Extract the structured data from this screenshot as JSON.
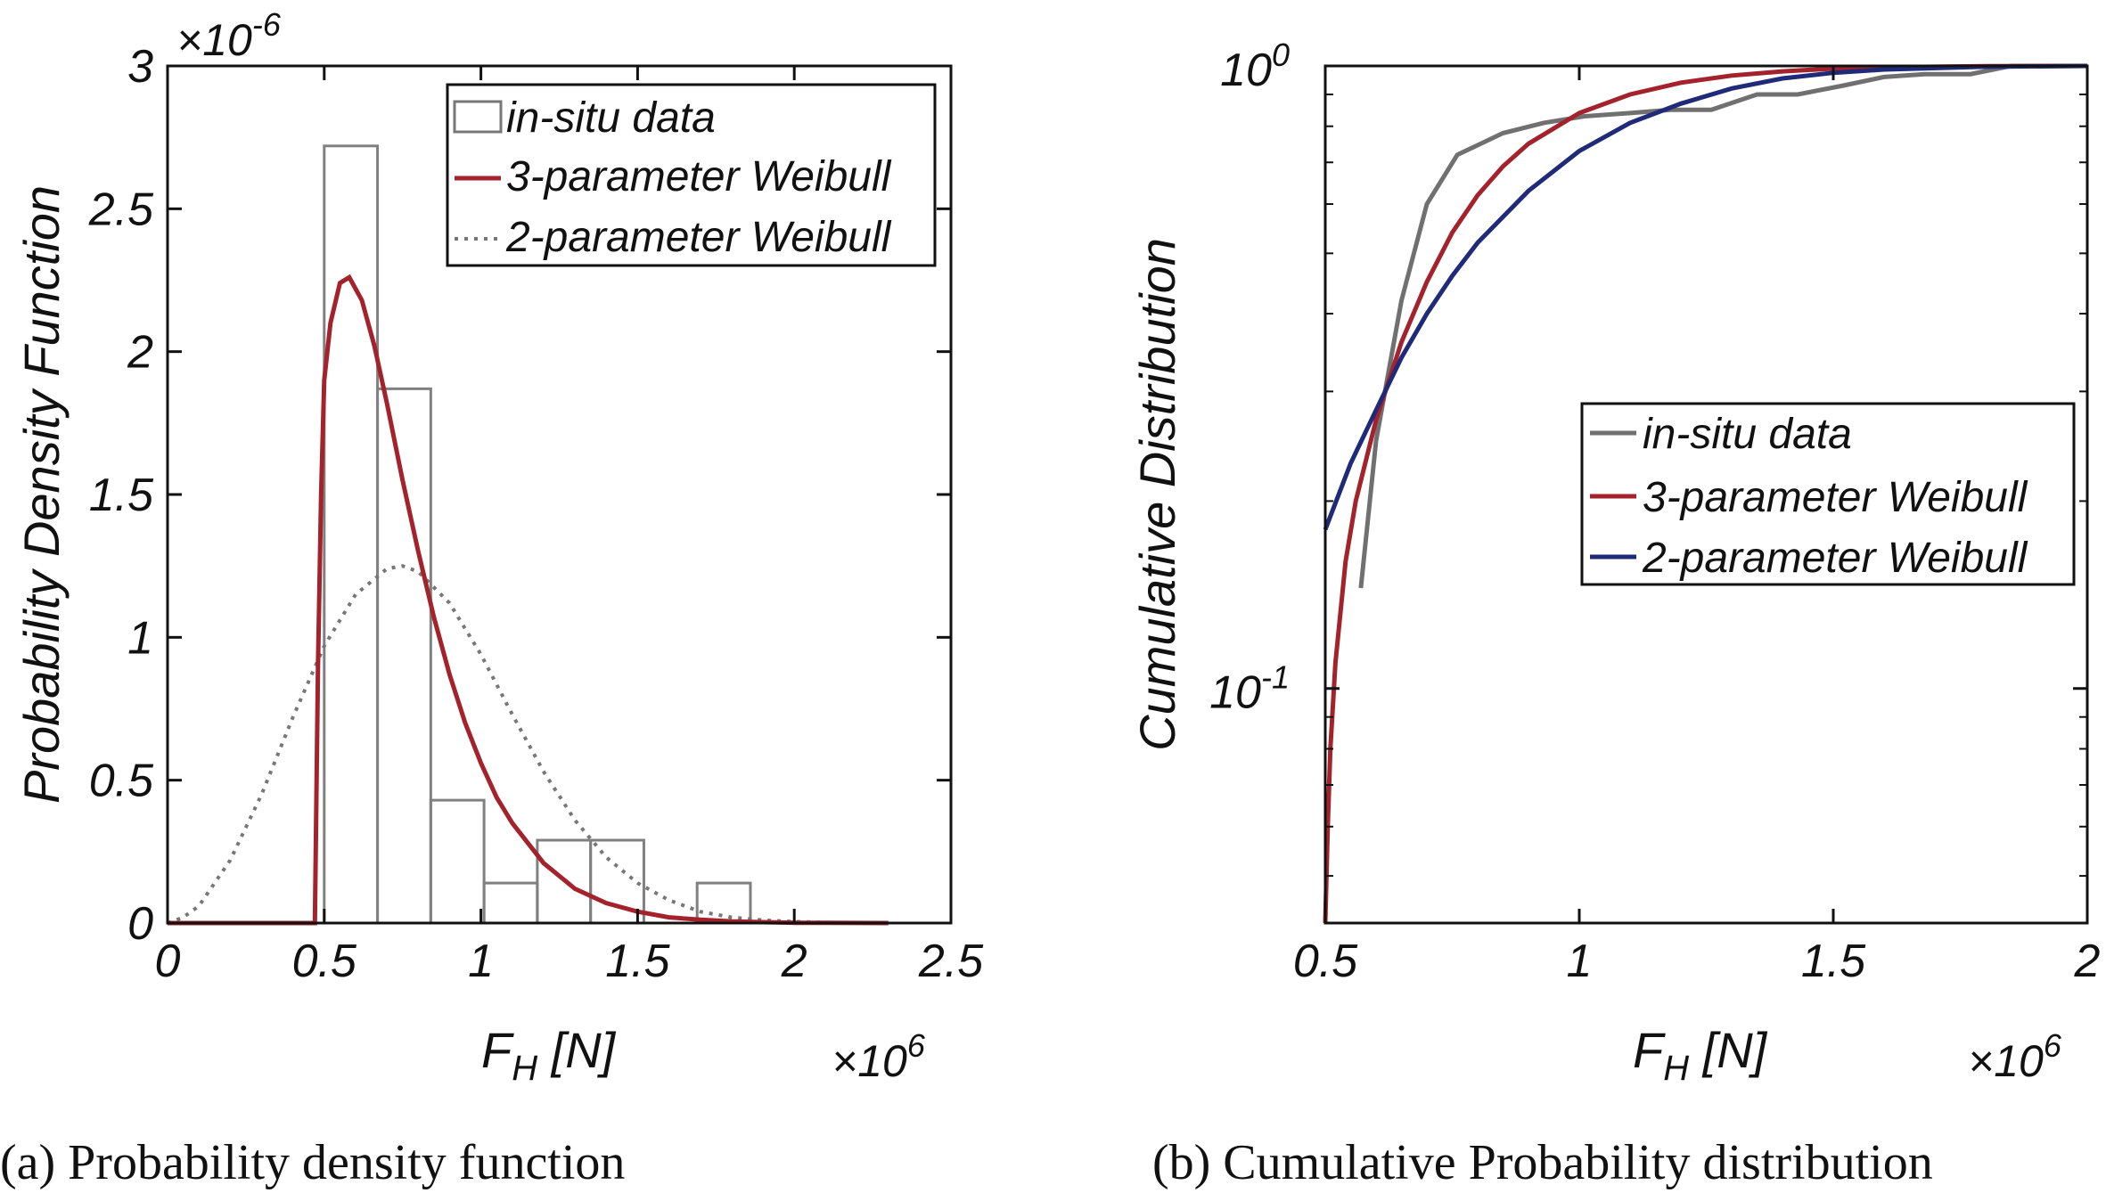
{
  "chart_data": [
    {
      "type": "bar",
      "panel": "a",
      "ylabel": "Probability Density Function",
      "xlabel": "F",
      "xlabel_sub": "H",
      "xlabel_unit": " [N]",
      "y_multiplier_base": "×10",
      "y_multiplier_exp": "-6",
      "x_multiplier_base": "×10",
      "x_multiplier_exp": "6",
      "xlim": [
        0,
        2.5
      ],
      "ylim": [
        0,
        3
      ],
      "x_ticks": [
        "0",
        "0.5",
        "1",
        "1.5",
        "2",
        "2.5"
      ],
      "y_ticks": [
        "0",
        "0.5",
        "1",
        "1.5",
        "2",
        "2.5",
        "3"
      ],
      "histogram": {
        "name": "in-situ data",
        "bins": [
          {
            "x0": 0.5,
            "x1": 0.67,
            "value": 2.72
          },
          {
            "x0": 0.67,
            "x1": 0.84,
            "value": 1.87
          },
          {
            "x0": 0.84,
            "x1": 1.01,
            "value": 0.43
          },
          {
            "x0": 1.01,
            "x1": 1.18,
            "value": 0.14
          },
          {
            "x0": 1.18,
            "x1": 1.35,
            "value": 0.29
          },
          {
            "x0": 1.35,
            "x1": 1.52,
            "value": 0.29
          },
          {
            "x0": 1.52,
            "x1": 1.69,
            "value": 0.0
          },
          {
            "x0": 1.69,
            "x1": 1.86,
            "value": 0.14
          }
        ]
      },
      "series": [
        {
          "name": "3-parameter Weibull",
          "color": "#a3222b",
          "style": "solid",
          "x": [
            0,
            0.47,
            0.48,
            0.49,
            0.5,
            0.52,
            0.55,
            0.58,
            0.62,
            0.66,
            0.7,
            0.75,
            0.8,
            0.85,
            0.9,
            0.95,
            1.0,
            1.05,
            1.1,
            1.2,
            1.3,
            1.4,
            1.5,
            1.6,
            1.7,
            1.8,
            1.9,
            2.0,
            2.1,
            2.2,
            2.3
          ],
          "values": [
            0,
            0,
            0.9,
            1.5,
            1.9,
            2.1,
            2.24,
            2.26,
            2.18,
            2.02,
            1.82,
            1.55,
            1.3,
            1.07,
            0.87,
            0.7,
            0.56,
            0.44,
            0.35,
            0.21,
            0.12,
            0.07,
            0.04,
            0.02,
            0.012,
            0.006,
            0.003,
            0.001,
            0.0005,
            0.0002,
            0.0
          ]
        },
        {
          "name": "2-parameter Weibull",
          "color": "#777777",
          "style": "dotted",
          "x": [
            0,
            0.05,
            0.1,
            0.2,
            0.3,
            0.4,
            0.5,
            0.6,
            0.7,
            0.75,
            0.8,
            0.9,
            1.0,
            1.1,
            1.2,
            1.3,
            1.4,
            1.5,
            1.6,
            1.7,
            1.8,
            1.9,
            2.0,
            2.1,
            2.2,
            2.3
          ],
          "values": [
            0,
            0.02,
            0.06,
            0.22,
            0.45,
            0.72,
            0.97,
            1.15,
            1.24,
            1.25,
            1.23,
            1.12,
            0.94,
            0.73,
            0.53,
            0.36,
            0.23,
            0.14,
            0.08,
            0.04,
            0.02,
            0.01,
            0.005,
            0.002,
            0.001,
            0.0
          ]
        }
      ],
      "legend": [
        "in-situ data",
        "3-parameter Weibull",
        "2-parameter Weibull"
      ],
      "legend_position": "top-right",
      "caption": "(a) Probability density function"
    },
    {
      "type": "line",
      "panel": "b",
      "yscale": "log",
      "ylabel": "Cumulative Distribution",
      "xlabel": "F",
      "xlabel_sub": "H",
      "xlabel_unit": " [N]",
      "x_multiplier_base": "×10",
      "x_multiplier_exp": "6",
      "xlim": [
        0.5,
        2.0
      ],
      "ylim": [
        0.042,
        1.0
      ],
      "x_ticks": [
        "0.5",
        "1",
        "1.5",
        "2"
      ],
      "y_ticks": [
        {
          "base": "10",
          "exp": "0",
          "value": 1.0
        },
        {
          "base": "10",
          "exp": "-1",
          "value": 0.1
        }
      ],
      "series": [
        {
          "name": "in-situ data",
          "color": "#707070",
          "x": [
            0.57,
            0.6,
            0.65,
            0.7,
            0.76,
            0.85,
            0.93,
            1.01,
            1.1,
            1.18,
            1.26,
            1.35,
            1.43,
            1.52,
            1.6,
            1.68,
            1.77,
            1.85,
            1.94,
            2.0
          ],
          "values": [
            0.145,
            0.25,
            0.42,
            0.6,
            0.72,
            0.78,
            0.81,
            0.83,
            0.84,
            0.85,
            0.85,
            0.9,
            0.9,
            0.93,
            0.96,
            0.97,
            0.97,
            1.0,
            1.0,
            1.0
          ]
        },
        {
          "name": "3-parameter Weibull",
          "color": "#a3222b",
          "x": [
            0.5,
            0.505,
            0.51,
            0.52,
            0.54,
            0.56,
            0.6,
            0.65,
            0.7,
            0.75,
            0.8,
            0.85,
            0.9,
            1.0,
            1.1,
            1.2,
            1.3,
            1.4,
            1.5,
            1.6,
            1.8,
            2.0
          ],
          "values": [
            0.042,
            0.06,
            0.08,
            0.11,
            0.16,
            0.2,
            0.27,
            0.36,
            0.45,
            0.54,
            0.62,
            0.69,
            0.75,
            0.84,
            0.9,
            0.94,
            0.965,
            0.98,
            0.99,
            0.995,
            0.999,
            1.0
          ]
        },
        {
          "name": "2-parameter Weibull",
          "color": "#1f2a78",
          "x": [
            0.5,
            0.55,
            0.6,
            0.65,
            0.7,
            0.75,
            0.8,
            0.9,
            1.0,
            1.1,
            1.2,
            1.3,
            1.4,
            1.5,
            1.6,
            1.8,
            2.0
          ],
          "values": [
            0.18,
            0.23,
            0.28,
            0.34,
            0.4,
            0.46,
            0.52,
            0.63,
            0.73,
            0.81,
            0.87,
            0.92,
            0.955,
            0.975,
            0.987,
            0.997,
            1.0
          ]
        }
      ],
      "legend": [
        "in-situ data",
        "3-parameter Weibull",
        "2-parameter Weibull"
      ],
      "legend_position": "center-right",
      "caption": "(b) Cumulative Probability distribution"
    }
  ]
}
